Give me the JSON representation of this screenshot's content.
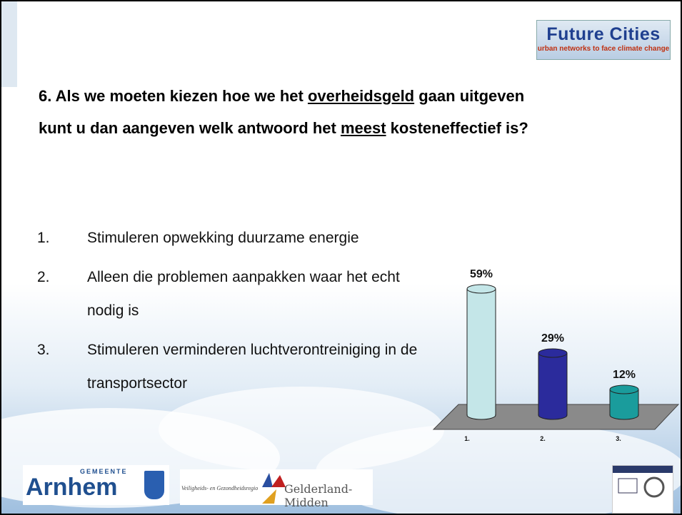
{
  "brand": {
    "title": "Future Cities",
    "subtitle": "urban networks to face climate change"
  },
  "question": [
    "6. Als we moeten kiezen hoe we het ",
    "overheidsgeld",
    " gaan uitgeven kunt u dan aangeven welk antwoord het ",
    "meest",
    " kosteneffectief is?"
  ],
  "options": [
    {
      "number": "1.",
      "text": "Stimuleren opwekking duurzame energie"
    },
    {
      "number": "2.",
      "text": "Alleen die problemen aanpakken waar het echt nodig is"
    },
    {
      "number": "3.",
      "text": "Stimuleren verminderen luchtverontreiniging in de transportsector"
    }
  ],
  "chart_data": {
    "type": "bar",
    "categories": [
      "1.",
      "2.",
      "3."
    ],
    "values": [
      59,
      29,
      12
    ],
    "value_labels": [
      "59%",
      "29%",
      "12%"
    ],
    "colors": [
      "#c4e6e8",
      "#2b2b9c",
      "#1a9c9c"
    ]
  },
  "footer": {
    "municipality_label": "GEMEENTE",
    "municipality": "Arnhem",
    "region_label": "Veiligheids- en Gezondheidsregio",
    "region": "Gelderland-Midden"
  }
}
